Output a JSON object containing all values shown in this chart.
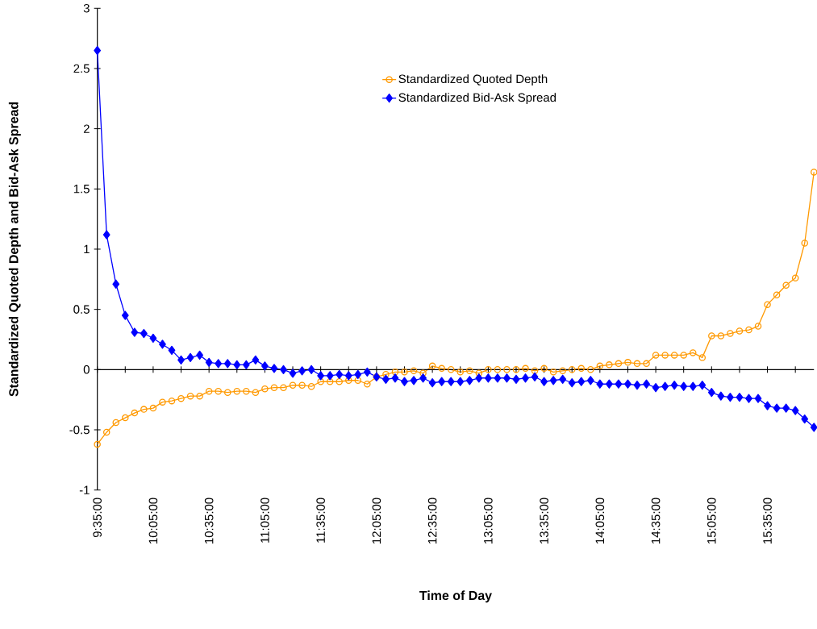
{
  "chart_data": {
    "type": "line",
    "xlabel": "Time of Day",
    "ylabel": "Standardized Quoted Depth and Bid-Ask Spread",
    "categories": [
      "9:35:00",
      null,
      null,
      null,
      null,
      null,
      "10:05:00",
      null,
      null,
      null,
      null,
      null,
      "10:35:00",
      null,
      null,
      null,
      null,
      null,
      "11:05:00",
      null,
      null,
      null,
      null,
      null,
      "11:35:00",
      null,
      null,
      null,
      null,
      null,
      "12:05:00",
      null,
      null,
      null,
      null,
      null,
      "12:35:00",
      null,
      null,
      null,
      null,
      null,
      "13:05:00",
      null,
      null,
      null,
      null,
      null,
      "13:35:00",
      null,
      null,
      null,
      null,
      null,
      "14:05:00",
      null,
      null,
      null,
      null,
      null,
      "14:35:00",
      null,
      null,
      null,
      null,
      null,
      "15:05:00",
      null,
      null,
      null,
      null,
      null,
      "15:35:00",
      null,
      null,
      null,
      null,
      null
    ],
    "series": [
      {
        "name": "Standardized Quoted Depth",
        "color": "#ff9900",
        "marker": "circle",
        "values": [
          -0.62,
          -0.52,
          -0.44,
          -0.4,
          -0.36,
          -0.33,
          -0.32,
          -0.27,
          -0.26,
          -0.24,
          -0.22,
          -0.22,
          -0.18,
          -0.18,
          -0.19,
          -0.18,
          -0.18,
          -0.19,
          -0.16,
          -0.15,
          -0.15,
          -0.13,
          -0.13,
          -0.14,
          -0.1,
          -0.1,
          -0.1,
          -0.09,
          -0.09,
          -0.12,
          -0.06,
          -0.04,
          -0.02,
          -0.02,
          -0.01,
          -0.03,
          0.03,
          0.01,
          0.0,
          -0.02,
          -0.01,
          -0.03,
          0.0,
          0.0,
          0.0,
          0.0,
          0.01,
          -0.01,
          0.01,
          -0.02,
          -0.01,
          0.0,
          0.01,
          0.0,
          0.03,
          0.04,
          0.05,
          0.06,
          0.05,
          0.05,
          0.12,
          0.12,
          0.12,
          0.12,
          0.14,
          0.1,
          0.28,
          0.28,
          0.3,
          0.32,
          0.33,
          0.36,
          0.54,
          0.62,
          0.7,
          0.76,
          1.05,
          1.64
        ]
      },
      {
        "name": "Standardized Bid-Ask Spread",
        "color": "#0000ff",
        "marker": "diamond",
        "values": [
          2.65,
          1.12,
          0.71,
          0.45,
          0.31,
          0.3,
          0.26,
          0.21,
          0.16,
          0.08,
          0.1,
          0.12,
          0.06,
          0.05,
          0.05,
          0.04,
          0.04,
          0.08,
          0.03,
          0.01,
          0.0,
          -0.03,
          -0.01,
          0.0,
          -0.05,
          -0.05,
          -0.04,
          -0.05,
          -0.04,
          -0.02,
          -0.06,
          -0.08,
          -0.07,
          -0.1,
          -0.09,
          -0.07,
          -0.11,
          -0.1,
          -0.1,
          -0.1,
          -0.09,
          -0.07,
          -0.07,
          -0.07,
          -0.07,
          -0.08,
          -0.07,
          -0.06,
          -0.1,
          -0.09,
          -0.08,
          -0.11,
          -0.1,
          -0.09,
          -0.12,
          -0.12,
          -0.12,
          -0.12,
          -0.13,
          -0.12,
          -0.15,
          -0.14,
          -0.13,
          -0.14,
          -0.14,
          -0.13,
          -0.19,
          -0.22,
          -0.23,
          -0.23,
          -0.24,
          -0.24,
          -0.3,
          -0.32,
          -0.32,
          -0.34,
          -0.41,
          -0.48
        ]
      }
    ],
    "ylim": [
      -1,
      3
    ],
    "yticks": [
      -1,
      -0.5,
      0,
      0.5,
      1,
      1.5,
      2,
      2.5,
      3
    ],
    "grid": false,
    "ref_lines": [
      {
        "axis": "y",
        "value": 0,
        "color": "#000000",
        "line_style": "solid"
      }
    ],
    "legend": "top",
    "line_style": "solid"
  }
}
